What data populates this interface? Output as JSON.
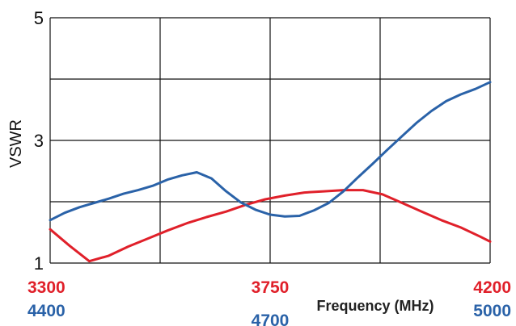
{
  "chart_data": {
    "type": "line",
    "title": "",
    "xlabel": "Frequency (MHz)",
    "ylabel": "VSWR",
    "ylim": [
      1,
      5
    ],
    "yticks": [
      "1",
      "3",
      "5"
    ],
    "grid": true,
    "x_axes": [
      {
        "ticks": [
          "3300",
          "3750",
          "4200"
        ],
        "range": [
          3300,
          4200
        ],
        "color": "#e0202a"
      },
      {
        "ticks": [
          "4400",
          "4700",
          "5000"
        ],
        "range": [
          4400,
          5000
        ],
        "color": "#2a62a8"
      }
    ],
    "series": [
      {
        "color": "#e0202a",
        "axis": 0,
        "x": [
          3300,
          3340,
          3380,
          3420,
          3460,
          3500,
          3540,
          3580,
          3620,
          3660,
          3700,
          3740,
          3780,
          3820,
          3860,
          3900,
          3940,
          3980,
          4020,
          4060,
          4100,
          4140,
          4180,
          4200
        ],
        "y": [
          1.55,
          1.28,
          1.03,
          1.12,
          1.27,
          1.4,
          1.53,
          1.65,
          1.75,
          1.84,
          1.95,
          2.04,
          2.1,
          2.15,
          2.17,
          2.19,
          2.19,
          2.12,
          1.98,
          1.84,
          1.7,
          1.58,
          1.43,
          1.35
        ]
      },
      {
        "color": "#2a62a8",
        "axis": 1,
        "x": [
          4400,
          4420,
          4440,
          4460,
          4480,
          4500,
          4520,
          4540,
          4560,
          4580,
          4600,
          4620,
          4640,
          4660,
          4680,
          4700,
          4720,
          4740,
          4760,
          4780,
          4800,
          4820,
          4840,
          4860,
          4880,
          4900,
          4920,
          4940,
          4960,
          4980,
          5000
        ],
        "y": [
          1.7,
          1.82,
          1.91,
          1.98,
          2.05,
          2.13,
          2.19,
          2.26,
          2.36,
          2.43,
          2.48,
          2.38,
          2.17,
          1.99,
          1.87,
          1.79,
          1.76,
          1.77,
          1.86,
          1.98,
          2.17,
          2.4,
          2.62,
          2.85,
          3.07,
          3.29,
          3.48,
          3.64,
          3.75,
          3.84,
          3.95
        ]
      }
    ]
  }
}
